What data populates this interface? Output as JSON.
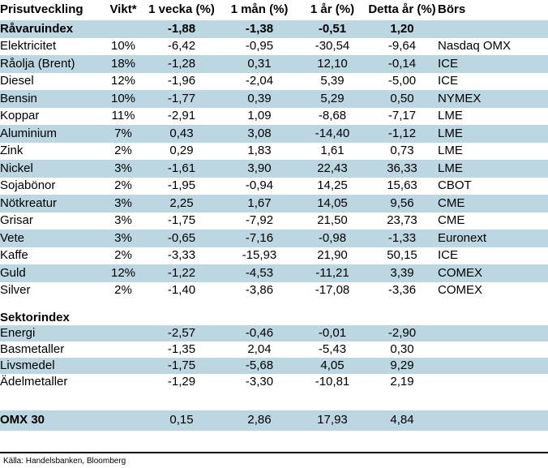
{
  "colors": {
    "row_shade": "#BCD6E2",
    "negative": "#FF0000",
    "text": "#000000"
  },
  "table": {
    "columns": [
      "Prisutveckling",
      "Vikt*",
      "1 vecka (%)",
      "1 mån (%)",
      "1 år (%)",
      "Detta år (%)",
      "Börs"
    ],
    "rows": [
      {
        "type": "data",
        "label": "Råvaruindex",
        "weight": "",
        "week": "-1,88",
        "month": "-1,38",
        "year": "-0,51",
        "ytd": "1,20",
        "exchange": "",
        "shade": true,
        "bold": true
      },
      {
        "type": "data",
        "label": "Elektricitet",
        "weight": "10%",
        "week": "-6,42",
        "month": "-0,95",
        "year": "-30,54",
        "ytd": "-9,64",
        "exchange": "Nasdaq OMX",
        "shade": false
      },
      {
        "type": "data",
        "label": "Råolja (Brent)",
        "weight": "18%",
        "week": "-1,28",
        "month": "0,31",
        "year": "12,10",
        "ytd": "-0,14",
        "exchange": "ICE",
        "shade": true
      },
      {
        "type": "data",
        "label": "Diesel",
        "weight": "12%",
        "week": "-1,96",
        "month": "-2,04",
        "year": "5,39",
        "ytd": "-5,00",
        "exchange": "ICE",
        "shade": false
      },
      {
        "type": "data",
        "label": "Bensin",
        "weight": "10%",
        "week": "-1,77",
        "month": "0,39",
        "year": "5,29",
        "ytd": "0,50",
        "exchange": "NYMEX",
        "shade": true
      },
      {
        "type": "data",
        "label": "Koppar",
        "weight": "11%",
        "week": "-2,91",
        "month": "1,09",
        "year": "-8,68",
        "ytd": "-7,17",
        "exchange": "LME",
        "shade": false
      },
      {
        "type": "data",
        "label": "Aluminium",
        "weight": "7%",
        "week": "0,43",
        "month": "3,08",
        "year": "-14,40",
        "ytd": "-1,12",
        "exchange": "LME",
        "shade": true
      },
      {
        "type": "data",
        "label": "Zink",
        "weight": "2%",
        "week": "0,29",
        "month": "1,83",
        "year": "1,61",
        "ytd": "0,73",
        "exchange": "LME",
        "shade": false
      },
      {
        "type": "data",
        "label": "Nickel",
        "weight": "3%",
        "week": "-1,61",
        "month": "3,90",
        "year": "22,43",
        "ytd": "36,33",
        "exchange": "LME",
        "shade": true
      },
      {
        "type": "data",
        "label": "Sojabönor",
        "weight": "2%",
        "week": "-1,95",
        "month": "-0,94",
        "year": "14,25",
        "ytd": "15,63",
        "exchange": "CBOT",
        "shade": false
      },
      {
        "type": "data",
        "label": "Nötkreatur",
        "weight": "3%",
        "week": "2,25",
        "month": "1,67",
        "year": "14,05",
        "ytd": "9,56",
        "exchange": "CME",
        "shade": true
      },
      {
        "type": "data",
        "label": "Grisar",
        "weight": "3%",
        "week": "-1,75",
        "month": "-7,92",
        "year": "21,50",
        "ytd": "23,73",
        "exchange": "CME",
        "shade": false
      },
      {
        "type": "data",
        "label": "Vete",
        "weight": "3%",
        "week": "-0,65",
        "month": "-7,16",
        "year": "-0,98",
        "ytd": "-1,33",
        "exchange": "Euronext",
        "shade": true
      },
      {
        "type": "data",
        "label": "Kaffe",
        "weight": "2%",
        "week": "-3,33",
        "month": "-15,93",
        "year": "21,90",
        "ytd": "50,15",
        "exchange": "ICE",
        "shade": false
      },
      {
        "type": "data",
        "label": "Guld",
        "weight": "12%",
        "week": "-1,22",
        "month": "-4,53",
        "year": "-11,21",
        "ytd": "3,39",
        "exchange": "COMEX",
        "shade": true
      },
      {
        "type": "data",
        "label": "Silver",
        "weight": "2%",
        "week": "-1,40",
        "month": "-3,86",
        "year": "-17,08",
        "ytd": "-3,36",
        "exchange": "COMEX",
        "shade": false
      },
      {
        "type": "spacer-sm"
      },
      {
        "type": "section",
        "label": "Sektorindex"
      },
      {
        "type": "data",
        "group": "sector",
        "label": "Energi",
        "weight": "",
        "week": "-2,57",
        "month": "-0,46",
        "year": "-0,01",
        "ytd": "-2,90",
        "exchange": "",
        "shade": true
      },
      {
        "type": "data",
        "group": "sector",
        "label": "Basmetaller",
        "weight": "",
        "week": "-1,35",
        "month": "2,04",
        "year": "-5,43",
        "ytd": "0,30",
        "exchange": "",
        "shade": false
      },
      {
        "type": "data",
        "group": "sector",
        "label": "Livsmedel",
        "weight": "",
        "week": "-1,75",
        "month": "-5,68",
        "year": "4,05",
        "ytd": "9,29",
        "exchange": "",
        "shade": true
      },
      {
        "type": "data",
        "group": "sector",
        "label": "Ädelmetaller",
        "weight": "",
        "week": "-1,29",
        "month": "-3,30",
        "year": "-10,81",
        "ytd": "2,19",
        "exchange": "",
        "shade": false
      },
      {
        "type": "spacer-lg"
      },
      {
        "type": "data",
        "group": "omx",
        "label": "OMX 30",
        "weight": "",
        "week": "0,15",
        "month": "2,86",
        "year": "17,93",
        "ytd": "4,84",
        "exchange": "",
        "shade": true,
        "bold_label": true
      }
    ]
  },
  "footer": {
    "source": "Källa: Handelsbanken, Bloomberg"
  }
}
